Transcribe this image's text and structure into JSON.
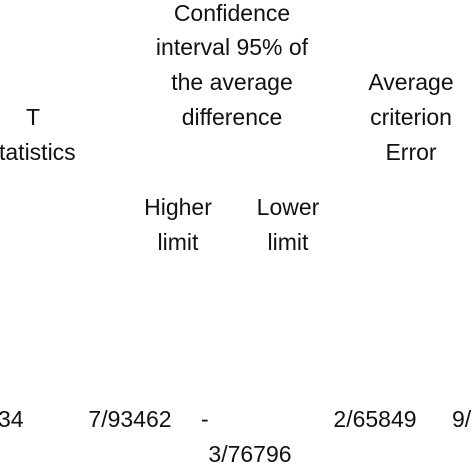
{
  "header": {
    "t_statistic": [
      "T",
      "tatistics"
    ],
    "confidence_interval": [
      "Confidence",
      "interval 95% of",
      "the average",
      "difference"
    ],
    "average_criterion_error": [
      "Average",
      "criterion",
      "Error"
    ],
    "higher_limit": [
      "Higher",
      "limit"
    ],
    "lower_limit": [
      "Lower",
      "limit"
    ]
  },
  "row": {
    "t_statistic": "34",
    "higher_limit": "7/93462",
    "lower_limit": [
      "-",
      "3/76796"
    ],
    "average_criterion_error": "2/65849",
    "next": "9/"
  }
}
